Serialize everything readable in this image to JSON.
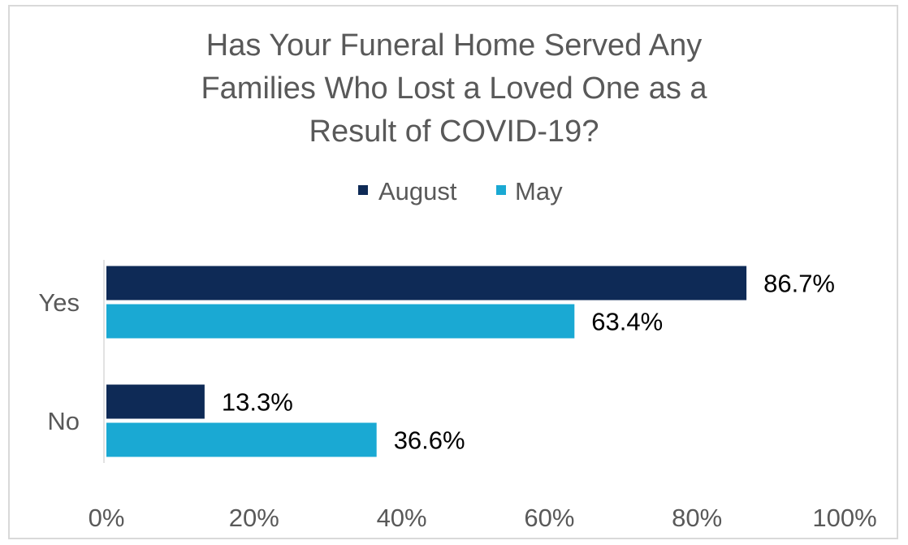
{
  "chart_data": {
    "type": "bar",
    "orientation": "horizontal",
    "title_lines": [
      "Has Your Funeral Home Served Any",
      "Families Who Lost a Loved One as a",
      "Result of COVID-19?"
    ],
    "categories": [
      "Yes",
      "No"
    ],
    "series": [
      {
        "name": "August",
        "values": [
          86.7,
          13.3
        ],
        "labels": [
          "86.7%",
          "13.3%"
        ]
      },
      {
        "name": "May",
        "values": [
          63.4,
          36.6
        ],
        "labels": [
          "63.4%",
          "36.6%"
        ]
      }
    ],
    "xlim": [
      0,
      100
    ],
    "x_ticks": [
      0,
      20,
      40,
      60,
      80,
      100
    ],
    "x_tick_labels": [
      "0%",
      "20%",
      "40%",
      "60%",
      "80%",
      "100%"
    ],
    "legend_position": "top",
    "grid": false
  },
  "colors": {
    "August": "#0e2a56",
    "May": "#1aa9d3"
  }
}
